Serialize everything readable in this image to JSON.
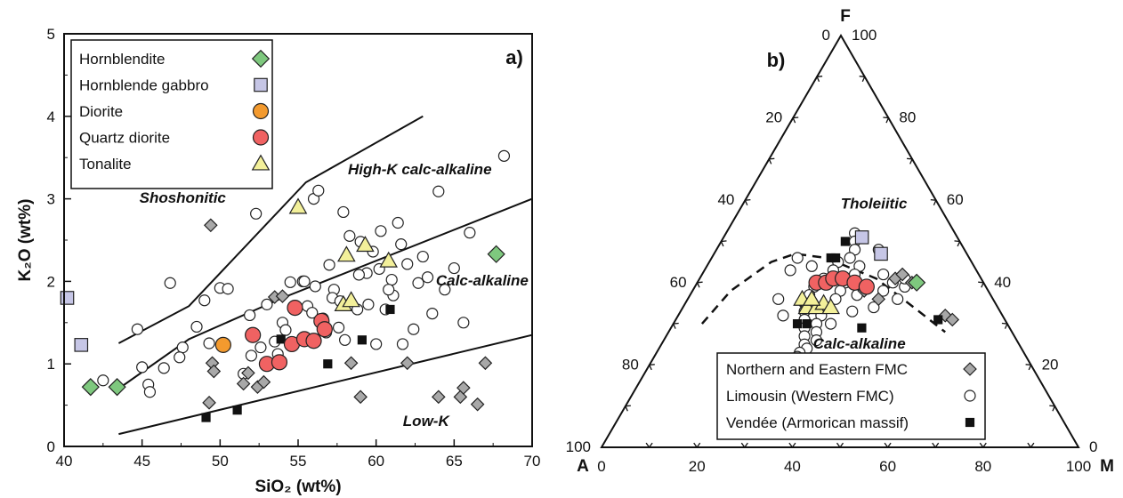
{
  "chart_data": [
    {
      "type": "scatter",
      "panel_label": "a)",
      "xlabel": "SiO₂ (wt%)",
      "ylabel": "K₂O (wt%)",
      "xlim": [
        40,
        70
      ],
      "ylim": [
        0,
        5
      ],
      "xticks": [
        40,
        45,
        50,
        55,
        60,
        65,
        70
      ],
      "yticks": [
        0,
        1,
        2,
        3,
        4,
        5
      ],
      "grid": false,
      "legend_placement": "top-left",
      "legend": [
        {
          "label": "Hornblendite",
          "marker": "diamond",
          "color": "#7ec87e"
        },
        {
          "label": "Hornblende gabbro",
          "marker": "square",
          "color": "#c6c6e6"
        },
        {
          "label": "Diorite",
          "marker": "circle",
          "color": "#f39a2e"
        },
        {
          "label": "Quartz diorite",
          "marker": "circle",
          "color": "#f06262"
        },
        {
          "label": "Tonalite",
          "marker": "triangle",
          "color": "#f3f09a"
        }
      ],
      "field_labels": [
        {
          "text": "Shoshonitic",
          "x": 47.6,
          "y": 2.95
        },
        {
          "text": "High-K calc-alkaline",
          "x": 62.8,
          "y": 3.3
        },
        {
          "text": "Calc-alkaline",
          "x": 66.8,
          "y": 1.95
        },
        {
          "text": "Low-K",
          "x": 63.2,
          "y": 0.25
        }
      ],
      "boundaries": [
        {
          "name": "shoshonitic / high-K",
          "x": [
            43.5,
            48,
            55.5,
            63
          ],
          "y": [
            1.25,
            1.7,
            3.2,
            4.0
          ]
        },
        {
          "name": "high-K / calc-alkaline",
          "x": [
            43.5,
            48,
            54,
            70
          ],
          "y": [
            0.7,
            1.3,
            1.8,
            3.0
          ]
        },
        {
          "name": "calc-alkaline / low-K",
          "x": [
            43.5,
            70
          ],
          "y": [
            0.15,
            1.35
          ]
        }
      ],
      "series": [
        {
          "name": "Hornblendite",
          "marker": "diamond",
          "color": "#7ec87e",
          "x": [
            41.7,
            43.4,
            67.7
          ],
          "y": [
            0.72,
            0.72,
            2.33
          ]
        },
        {
          "name": "Hornblende gabbro",
          "marker": "square",
          "color": "#c6c6e6",
          "x": [
            40.2,
            41.1
          ],
          "y": [
            1.8,
            1.23
          ]
        },
        {
          "name": "Diorite",
          "marker": "circle",
          "color": "#f39a2e",
          "x": [
            50.2
          ],
          "y": [
            1.23
          ]
        },
        {
          "name": "Quartz diorite",
          "marker": "circle",
          "color": "#f06262",
          "x": [
            52.1,
            53.0,
            53.8,
            54.6,
            54.8,
            55.4,
            56.0,
            56.5,
            56.7
          ],
          "y": [
            1.35,
            1.0,
            1.02,
            1.24,
            1.68,
            1.3,
            1.28,
            1.52,
            1.42
          ]
        },
        {
          "name": "Tonalite",
          "marker": "triangle",
          "color": "#f3f09a",
          "x": [
            55.0,
            57.9,
            58.1,
            58.4,
            59.3,
            60.8
          ],
          "y": [
            2.9,
            1.72,
            2.32,
            1.77,
            2.44,
            2.25
          ]
        },
        {
          "name": "Northern and Eastern FMC",
          "marker": "diamond",
          "color": "#a8a8a8",
          "x": [
            49.4,
            49.5,
            49.6,
            49.3,
            51.5,
            51.8,
            52.4,
            52.8,
            53.5,
            54.0,
            53.2,
            58.4,
            59.0,
            62.0,
            64.0,
            65.4,
            65.6,
            66.5,
            67.0
          ],
          "y": [
            2.68,
            1.01,
            0.91,
            0.53,
            0.76,
            0.89,
            0.72,
            0.78,
            1.81,
            1.82,
            1.0,
            1.01,
            0.6,
            1.01,
            0.6,
            0.6,
            0.71,
            0.51,
            1.01
          ]
        },
        {
          "name": "Limousin (Western FMC)",
          "marker": "circle",
          "color": "#ffffff",
          "x": [
            42.5,
            44.7,
            45.0,
            45.4,
            45.5,
            46.4,
            46.8,
            47.6,
            48.5,
            49.0,
            50.0,
            50.5,
            51.5,
            52.0,
            52.3,
            53.0,
            53.5,
            54.0,
            54.5,
            55.3,
            55.6,
            56.0,
            56.3,
            56.6,
            57.0,
            57.3,
            57.6,
            57.9,
            58.0,
            58.3,
            58.8,
            59.0,
            59.4,
            60.0,
            60.3,
            60.6,
            61.0,
            61.1,
            61.4,
            61.7,
            62.0,
            62.4,
            63.0,
            63.6,
            64.0,
            64.4,
            65.0,
            65.6,
            66.0,
            68.2,
            55.4,
            57.2,
            58.9,
            61.6,
            52.6,
            54.2,
            56.8,
            59.5,
            60.8,
            63.3,
            49.3,
            51.9,
            55.9,
            57.7,
            60.2,
            62.7,
            47.4,
            53.7,
            56.1,
            59.8
          ],
          "y": [
            0.8,
            1.42,
            0.96,
            0.75,
            0.66,
            0.95,
            1.98,
            1.2,
            1.45,
            1.77,
            1.92,
            1.91,
            0.88,
            1.1,
            2.82,
            1.72,
            1.27,
            1.5,
            1.99,
            2.0,
            1.7,
            3.0,
            3.1,
            1.55,
            2.2,
            1.9,
            1.44,
            2.84,
            1.29,
            2.55,
            1.66,
            2.48,
            2.1,
            1.24,
            2.61,
            1.66,
            2.02,
            1.83,
            2.71,
            1.24,
            2.21,
            1.42,
            2.3,
            1.61,
            3.09,
            1.9,
            2.16,
            1.5,
            2.59,
            3.52,
            2.0,
            1.8,
            2.08,
            2.45,
            1.2,
            1.41,
            1.38,
            1.72,
            1.9,
            2.05,
            1.25,
            1.59,
            1.62,
            1.76,
            2.15,
            1.98,
            1.08,
            1.12,
            1.94,
            2.36
          ]
        },
        {
          "name": "Vendée (Armorican massif)",
          "marker": "square",
          "color": "#111111",
          "x": [
            49.1,
            51.1,
            53.9,
            56.9,
            59.1,
            60.9
          ],
          "y": [
            0.35,
            0.44,
            1.3,
            1.0,
            1.29,
            1.66
          ]
        }
      ]
    },
    {
      "type": "scatter",
      "panel_label": "b)",
      "diagram": "ternary AFM",
      "vertices": {
        "top": "F",
        "left": "A",
        "right": "M"
      },
      "bottom_ticks": [
        "0",
        "20",
        "40",
        "60",
        "80",
        "100"
      ],
      "left_ticks": [
        "0",
        "20",
        "40",
        "60",
        "80",
        "100"
      ],
      "right_ticks": [
        "100",
        "80",
        "60",
        "40",
        "20",
        "0"
      ],
      "field_labels": [
        {
          "text": "Tholeiitic",
          "F": 58,
          "A": 14
        },
        {
          "text": "Calc-alkaline",
          "F": 24,
          "A": 34
        }
      ],
      "boundary": {
        "style": "dashed",
        "F": [
          30,
          38,
          45,
          47,
          46,
          41,
          33,
          28
        ],
        "A": [
          64,
          54,
          42,
          36,
          30,
          22,
          17,
          14
        ]
      },
      "legend_placement": "bottom-right",
      "legend": [
        {
          "label": "Northern and Eastern FMC",
          "marker": "diamond",
          "color": "#a8a8a8"
        },
        {
          "label": "Limousin (Western FMC)",
          "marker": "circle",
          "color": "#ffffff"
        },
        {
          "label": "Vendée (Armorican massif)",
          "marker": "square",
          "color": "#111111"
        }
      ],
      "series": [
        {
          "name": "Hornblendite",
          "marker": "diamond",
          "color": "#7ec87e",
          "F": [
            40
          ],
          "A": [
            14
          ]
        },
        {
          "name": "Hornblende gabbro",
          "marker": "square",
          "color": "#c6c6e6",
          "F": [
            51,
            47
          ],
          "A": [
            20,
            18
          ]
        },
        {
          "name": "Quartz diorite",
          "marker": "circle",
          "color": "#f06262",
          "F": [
            40,
            40,
            41,
            41,
            40,
            39
          ],
          "A": [
            35,
            33,
            31,
            29,
            27,
            25
          ]
        },
        {
          "name": "Tonalite",
          "marker": "triangle",
          "color": "#f3f09a",
          "F": [
            36,
            34,
            34,
            35,
            34,
            36
          ],
          "A": [
            40,
            40,
            38,
            36,
            35,
            38
          ]
        },
        {
          "name": "Northern and Eastern FMC",
          "marker": "diamond",
          "color": "#a8a8a8",
          "F": [
            41,
            42,
            40,
            32,
            31,
            35,
            38,
            36
          ],
          "A": [
            18,
            16,
            15,
            12,
            11,
            40,
            26,
            24
          ]
        },
        {
          "name": "Limousin (Western FMC)",
          "marker": "circle",
          "color": "#ffffff",
          "F": [
            52,
            50,
            48,
            46,
            45,
            44,
            43,
            42,
            41,
            40,
            39,
            38,
            37,
            36,
            35,
            34,
            33,
            32,
            31,
            30,
            29,
            28,
            27,
            26,
            25,
            24,
            23,
            22,
            21,
            20,
            19,
            17,
            42,
            40,
            38,
            36,
            34,
            44,
            46,
            37,
            43,
            33,
            30,
            39,
            41,
            36,
            48,
            32
          ],
          "A": [
            21,
            22,
            23,
            25,
            28,
            24,
            30,
            26,
            33,
            29,
            36,
            31,
            38,
            33,
            40,
            36,
            41,
            38,
            42,
            40,
            43,
            41,
            44,
            42,
            45,
            45,
            47,
            48,
            49,
            52,
            54,
            62,
            20,
            19,
            22,
            20,
            26,
            34,
            36,
            28,
            39,
            31,
            37,
            17,
            16,
            45,
            18,
            46
          ]
        },
        {
          "name": "Vendée (Armorican massif)",
          "marker": "square",
          "color": "#111111",
          "F": [
            50,
            46,
            46,
            30,
            30,
            31,
            29
          ],
          "A": [
            24,
            29,
            28,
            44,
            42,
            14,
            31
          ]
        }
      ]
    }
  ]
}
